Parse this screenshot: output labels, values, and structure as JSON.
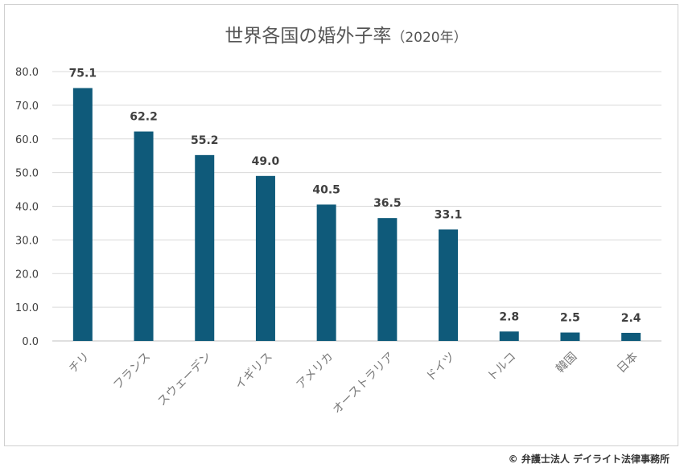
{
  "chart_data": {
    "type": "bar",
    "title": "世界各国の婚外子率",
    "title_suffix": "（2020年）",
    "categories": [
      "チリ",
      "フランス",
      "スウェーデン",
      "イギリス",
      "アメリカ",
      "オーストラリア",
      "ドイツ",
      "トルコ",
      "韓国",
      "日本"
    ],
    "values": [
      75.1,
      62.2,
      55.2,
      49.0,
      40.5,
      36.5,
      33.1,
      2.8,
      2.5,
      2.4
    ],
    "value_labels": [
      "75.1",
      "62.2",
      "55.2",
      "49.0",
      "40.5",
      "36.5",
      "33.1",
      "2.8",
      "2.5",
      "2.4"
    ],
    "y_ticks": [
      "0.0",
      "10.0",
      "20.0",
      "30.0",
      "40.0",
      "50.0",
      "60.0",
      "70.0",
      "80.0"
    ],
    "ylim": [
      0,
      80
    ],
    "grid": true,
    "bar_color": "#0f5a7a",
    "xlabel": "",
    "ylabel": ""
  },
  "credit": "© 弁護士法人 デイライト法律事務所"
}
